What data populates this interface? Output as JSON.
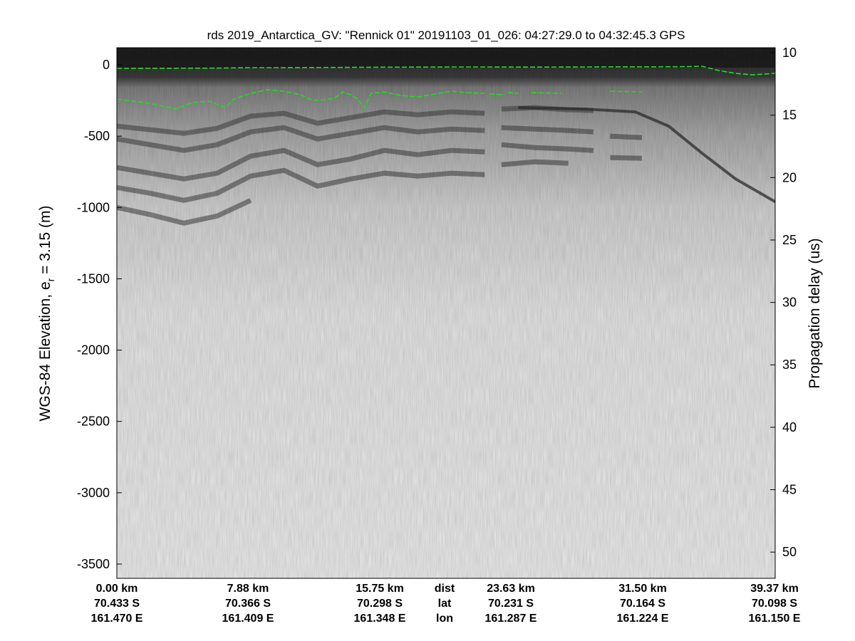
{
  "chart_data": {
    "type": "heatmap",
    "title": "rds 2019_Antarctica_GV: \"Rennick 01\"  20191103_01_026: 04:27:29.0 to 04:32:45.3 GPS",
    "colormap": "grayscale (dark = strong return)",
    "ylabel_left": {
      "text": "WGS-84 Elevation, e",
      "subscript": "r",
      "suffix": " = 3.15 (m)"
    },
    "ylabel_right": "Propagation delay (us)",
    "ylim_left": [
      -3600,
      120
    ],
    "yticks_left": [
      0,
      -500,
      -1000,
      -1500,
      -2000,
      -2500,
      -3000,
      -3500
    ],
    "ylim_right": [
      9.6,
      52.1
    ],
    "yticks_right": [
      10,
      15,
      20,
      25,
      30,
      35,
      40,
      45,
      50
    ],
    "xlim_km": [
      0,
      39.37
    ],
    "footer_rows": [
      {
        "tag": "dist",
        "values": [
          "0.00 km",
          "7.88 km",
          "15.75 km",
          "23.63 km",
          "31.50 km",
          "39.37 km"
        ]
      },
      {
        "tag": "lat",
        "values": [
          "70.433 S",
          "70.366 S",
          "70.298 S",
          "70.231 S",
          "70.164 S",
          "70.098 S"
        ]
      },
      {
        "tag": "lon",
        "values": [
          "161.470 E",
          "161.409 E",
          "161.348 E",
          "161.287 E",
          "161.224 E",
          "161.150 E"
        ]
      }
    ],
    "series": [
      {
        "role": "surface pick",
        "color": "#22dd22",
        "style": "dashed",
        "x_km": [
          0,
          3,
          6,
          8,
          10,
          12,
          15,
          18,
          20,
          22,
          25,
          28,
          30,
          32,
          34,
          35,
          36,
          37,
          38,
          39.37
        ],
        "elevation_m": [
          -25,
          -24,
          -23,
          -20,
          -20,
          -19,
          -17,
          -16,
          -15,
          -15,
          -16,
          -15,
          -14,
          -14,
          -13,
          -10,
          -40,
          -60,
          -70,
          -60
        ]
      },
      {
        "role": "bottom pick",
        "color": "#22dd22",
        "style": "dashed",
        "segments": [
          {
            "x_km": [
              0,
              1.0,
              2.0,
              3.0,
              3.5,
              4.5,
              5.5,
              6.5,
              7.0,
              8.0,
              9.0,
              10.0,
              11.0,
              11.5,
              12.0,
              13.0,
              13.5,
              14.0,
              14.4,
              14.8,
              15.2,
              16.0,
              17.0,
              18.0,
              19.0,
              20.0,
              21.0,
              22.0
            ],
            "elevation_m": [
              -240,
              -255,
              -270,
              -295,
              -310,
              -265,
              -255,
              -300,
              -240,
              -200,
              -175,
              -185,
              -210,
              -240,
              -250,
              -235,
              -190,
              -210,
              -240,
              -300,
              -200,
              -190,
              -215,
              -225,
              -205,
              -185,
              -195,
              -200
            ]
          },
          {
            "x_km": [
              22.3,
              23.2
            ],
            "elevation_m": [
              -205,
              -210
            ]
          },
          {
            "x_km": [
              23.4,
              24.0
            ],
            "elevation_m": [
              -195,
              -200
            ]
          },
          {
            "x_km": [
              24.8,
              26.6
            ],
            "elevation_m": [
              -195,
              -200
            ]
          },
          {
            "x_km": [
              29.5,
              31.4
            ],
            "elevation_m": [
              -185,
              -190
            ]
          }
        ]
      }
    ],
    "internal_layers": [
      {
        "x_km": [
          0,
          2,
          4,
          6,
          8,
          10,
          12,
          14,
          16,
          18,
          20,
          22
        ],
        "elevation_m": [
          -430,
          -455,
          -480,
          -445,
          -360,
          -340,
          -410,
          -370,
          -330,
          -350,
          -330,
          -340
        ]
      },
      {
        "x_km": [
          0,
          2,
          4,
          6,
          8,
          10,
          12,
          14,
          16,
          18,
          20,
          22
        ],
        "elevation_m": [
          -520,
          -560,
          -600,
          -560,
          -470,
          -440,
          -520,
          -480,
          -440,
          -470,
          -450,
          -460
        ]
      },
      {
        "x_km": [
          0,
          2,
          4,
          6,
          8,
          10,
          12,
          14,
          16,
          18,
          20,
          22
        ],
        "elevation_m": [
          -720,
          -760,
          -800,
          -760,
          -640,
          -600,
          -700,
          -660,
          -600,
          -630,
          -600,
          -610
        ]
      },
      {
        "x_km": [
          0,
          2,
          4,
          6,
          8,
          10,
          12,
          14,
          16,
          18,
          20,
          22
        ],
        "elevation_m": [
          -860,
          -900,
          -950,
          -900,
          -780,
          -740,
          -850,
          -800,
          -760,
          -780,
          -760,
          -770
        ]
      },
      {
        "x_km": [
          0,
          2,
          4,
          6,
          8
        ],
        "elevation_m": [
          -1000,
          -1050,
          -1110,
          -1060,
          -950
        ]
      },
      {
        "x_km": [
          23,
          25,
          27,
          28.5
        ],
        "elevation_m": [
          -310,
          -300,
          -315,
          -320
        ]
      },
      {
        "x_km": [
          23,
          25,
          27,
          28.5
        ],
        "elevation_m": [
          -440,
          -450,
          -460,
          -470
        ]
      },
      {
        "x_km": [
          23,
          25,
          27,
          28.5
        ],
        "elevation_m": [
          -560,
          -580,
          -590,
          -600
        ]
      },
      {
        "x_km": [
          23,
          25,
          27
        ],
        "elevation_m": [
          -700,
          -680,
          -690
        ]
      },
      {
        "x_km": [
          29.5,
          31.4
        ],
        "elevation_m": [
          -500,
          -510
        ]
      },
      {
        "x_km": [
          29.5,
          31.4
        ],
        "elevation_m": [
          -650,
          -655
        ]
      }
    ],
    "reflector_dipping": {
      "x_km": [
        24,
        28,
        31,
        33,
        35,
        37,
        39.37
      ],
      "elevation_m": [
        -300,
        -310,
        -330,
        -430,
        -620,
        -800,
        -960
      ]
    }
  }
}
